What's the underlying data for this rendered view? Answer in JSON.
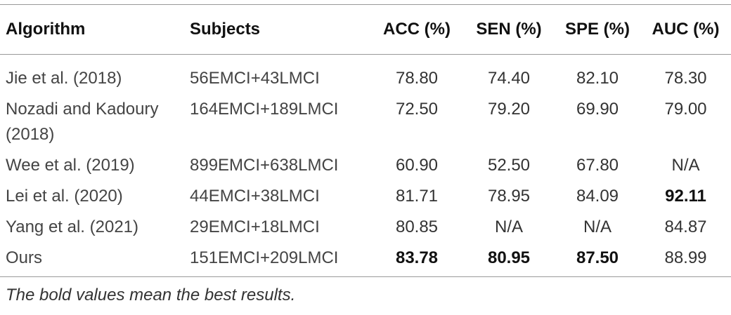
{
  "table": {
    "headers": [
      "Algorithm",
      "Subjects",
      "ACC (%)",
      "SEN (%)",
      "SPE (%)",
      "AUC (%)"
    ],
    "rows": [
      [
        "Jie et al. (2018)",
        "56EMCI+43LMCI",
        "78.80",
        "74.40",
        "82.10",
        "78.30"
      ],
      [
        "Nozadi and Kadoury (2018)",
        "164EMCI+189LMCI",
        "72.50",
        "79.20",
        "69.90",
        "79.00"
      ],
      [
        "Wee et al. (2019)",
        "899EMCI+638LMCI",
        "60.90",
        "52.50",
        "67.80",
        "N/A"
      ],
      [
        "Lei et al. (2020)",
        "44EMCI+38LMCI",
        "81.71",
        "78.95",
        "84.09",
        "92.11"
      ],
      [
        "Yang et al. (2021)",
        "29EMCI+18LMCI",
        "80.85",
        "N/A",
        "N/A",
        "84.87"
      ],
      [
        "Ours",
        "151EMCI+209LMCI",
        "83.78",
        "80.95",
        "87.50",
        "88.99"
      ]
    ]
  },
  "footnote": "The bold values mean the best results."
}
